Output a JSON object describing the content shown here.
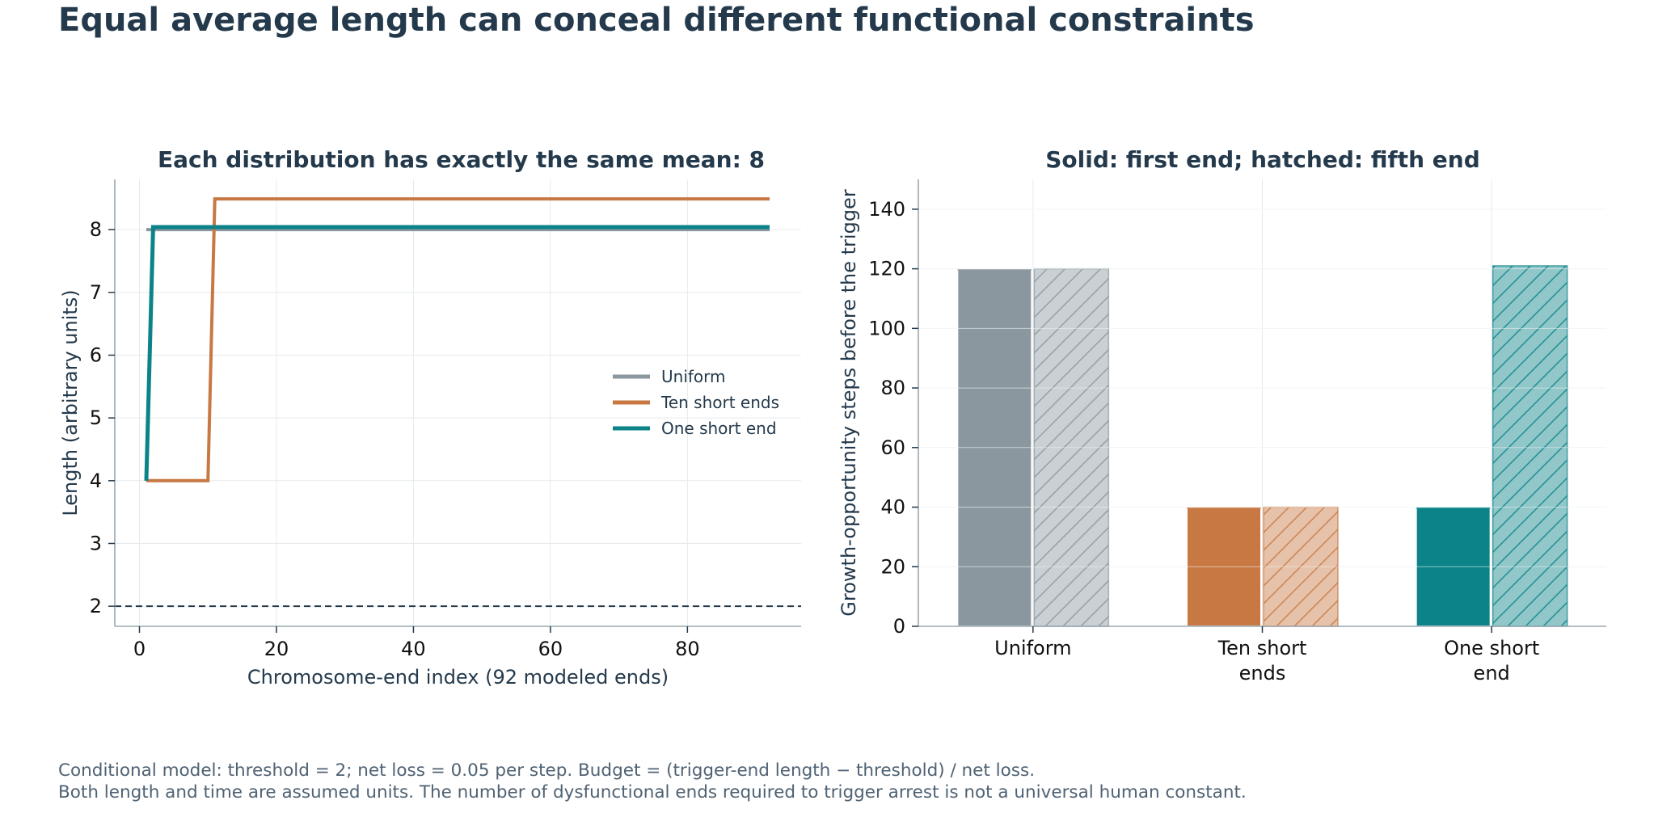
{
  "title": "Equal average length can conceal different functional constraints",
  "footnote": {
    "line1": "Conditional model: threshold = 2; net loss = 0.05 per step. Budget = (trigger-end length − threshold) / net loss.",
    "line2": "Both length and time are assumed units. The number of dysfunctional ends required to trigger arrest is not a universal human constant."
  },
  "colors": {
    "uniform": "#8a979e",
    "ten_short": "#c77843",
    "one_short": "#0b8388",
    "text": "#243a4c",
    "axis": "#9aa7b0",
    "grid": "#e6eaed"
  },
  "chart_data": [
    {
      "type": "line",
      "title": "Each distribution has exactly the same mean: 8",
      "xlabel": "Chromosome-end index (92 modeled ends)",
      "ylabel": "Length (arbitrary units)",
      "xlim": [
        -3.6,
        96.6
      ],
      "ylim": [
        1.68,
        8.8
      ],
      "xticks": [
        0,
        20,
        40,
        60,
        80
      ],
      "yticks": [
        2,
        3,
        4,
        5,
        6,
        7,
        8
      ],
      "grid": true,
      "legend_position": "center-right",
      "threshold_line": {
        "y": 2,
        "style": "dashed"
      },
      "series": [
        {
          "name": "Uniform",
          "color_key": "uniform",
          "x": [
            1,
            92
          ],
          "y": [
            8.0,
            8.0
          ]
        },
        {
          "name": "Ten short ends",
          "color_key": "ten_short",
          "x": [
            1,
            10,
            11,
            92
          ],
          "y": [
            4.0,
            4.0,
            8.49,
            8.49
          ]
        },
        {
          "name": "One short end",
          "color_key": "one_short",
          "x": [
            1,
            2,
            92
          ],
          "y": [
            4.0,
            8.04,
            8.04
          ]
        }
      ]
    },
    {
      "type": "bar",
      "title": "Solid: first end; hatched: fifth end",
      "ylabel": "Growth-opportunity steps before the trigger",
      "ylim": [
        0,
        150
      ],
      "yticks": [
        0,
        20,
        40,
        60,
        80,
        100,
        120,
        140
      ],
      "grid": true,
      "categories": [
        {
          "lines": [
            "Uniform"
          ],
          "color_key": "uniform"
        },
        {
          "lines": [
            "Ten short",
            "ends"
          ],
          "color_key": "ten_short"
        },
        {
          "lines": [
            "One short",
            "end"
          ],
          "color_key": "one_short"
        }
      ],
      "series": [
        {
          "name": "first end",
          "style": "solid",
          "values": [
            120,
            40,
            40
          ]
        },
        {
          "name": "fifth end",
          "style": "hatched",
          "values": [
            120,
            40,
            121
          ]
        }
      ]
    }
  ]
}
